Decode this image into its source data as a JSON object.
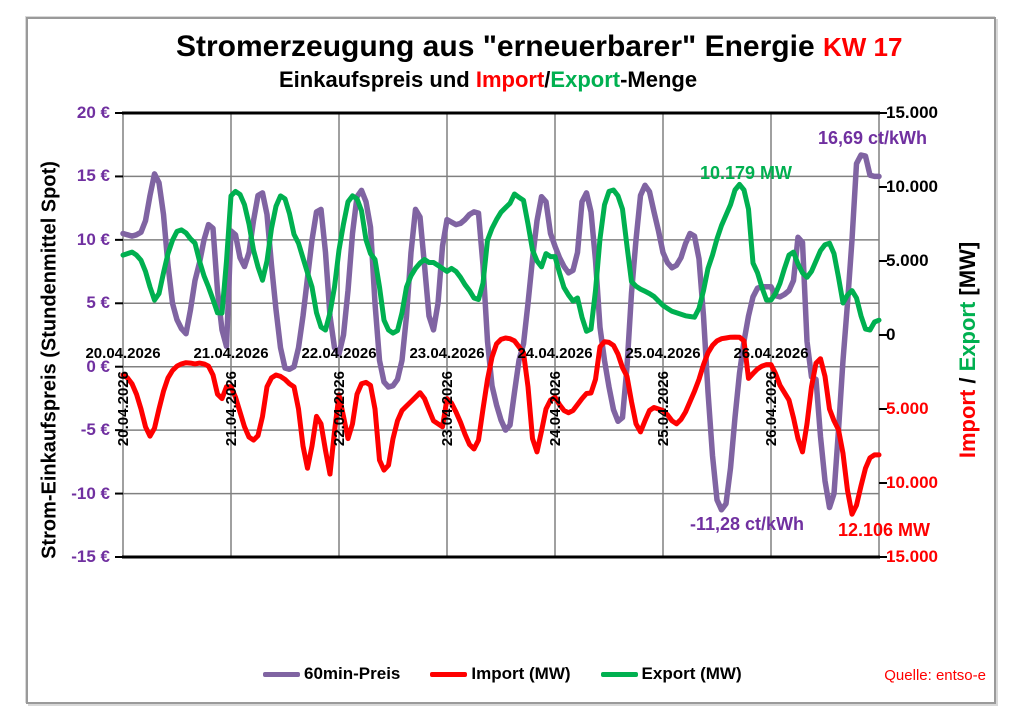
{
  "title": {
    "main": "Stromerzeugung aus \"erneuerbarer\" Energie",
    "week": "KW 17"
  },
  "subtitle": {
    "parts": [
      {
        "text": "Einkaufspreis und ",
        "color": "#000000"
      },
      {
        "text": "Import",
        "color": "#ff0000"
      },
      {
        "text": "/",
        "color": "#000000"
      },
      {
        "text": "Export",
        "color": "#00B050"
      },
      {
        "text": "-Menge",
        "color": "#000000"
      }
    ]
  },
  "colors": {
    "price_line": "#8064A2",
    "import_line": "#ff0000",
    "export_line": "#00B050",
    "axis_label_purple": "#7030A0",
    "gridline": "#808080",
    "axis_border": "#000000"
  },
  "axes": {
    "left": {
      "title": "Strom-Einkaufspreis (Stundenmittel Spot)",
      "labels": [
        "20 €",
        "15 €",
        "10 €",
        "5 €",
        "0 €",
        "-5 €",
        "-10 €",
        "-15 €"
      ],
      "color": "#7030A0"
    },
    "right": {
      "title_parts": [
        {
          "text": "Import",
          "color": "#ff0000"
        },
        {
          "text": " / ",
          "color": "#000000"
        },
        {
          "text": "Export",
          "color": "#00B050"
        },
        {
          "text": " [MW]",
          "color": "#000000"
        }
      ],
      "labels": [
        {
          "text": "15.000",
          "color": "#000000"
        },
        {
          "text": "10.000",
          "color": "#000000"
        },
        {
          "text": "5.000",
          "color": "#000000"
        },
        {
          "text": "0",
          "color": "#000000"
        },
        {
          "text": "5.000",
          "color": "#ff0000"
        },
        {
          "text": "10.000",
          "color": "#ff0000"
        },
        {
          "text": "15.000",
          "color": "#ff0000"
        }
      ]
    },
    "x": {
      "dates": [
        "20.04.2026",
        "21.04.2026",
        "22.04.2026",
        "23.04.2026",
        "24.04.2026",
        "25.04.2026",
        "26.04.2026"
      ]
    }
  },
  "annotations": {
    "price_max": "16,69 ct/kWh",
    "export_max": "10.179 MW",
    "price_min": "-11,28 ct/kWh",
    "import_max": "12.106 MW"
  },
  "legend": {
    "items": [
      {
        "label": "60min-Preis",
        "color": "#8064A2"
      },
      {
        "label": "Import (MW)",
        "color": "#ff0000"
      },
      {
        "label": "Export (MW)",
        "color": "#00B050"
      }
    ],
    "source": "Quelle: entso-e"
  },
  "chart_data": {
    "type": "line",
    "title": "Stromerzeugung aus \"erneuerbarer\" Energie KW 17",
    "subtitle": "Einkaufspreis und Import/Export-Menge",
    "x_unit": "hours since 20.04.2026 00:00",
    "x_range": [
      0,
      168
    ],
    "x_tick_labels": [
      "20.04.2026",
      "21.04.2026",
      "22.04.2026",
      "23.04.2026",
      "24.04.2026",
      "25.04.2026",
      "26.04.2026"
    ],
    "grid": true,
    "legend_position": "bottom",
    "left_axis": {
      "label": "Strom-Einkaufspreis (Stundenmittel Spot)",
      "unit": "€",
      "range": [
        -15,
        20
      ],
      "tick_step": 5
    },
    "right_axis": {
      "label": "Import / Export [MW]",
      "range": [
        -15000,
        15000
      ],
      "tick_step": 5000,
      "note": "import plotted downward as negative, labeled with red positive numbers"
    },
    "series": [
      {
        "name": "60min-Preis",
        "axis": "left",
        "color": "#8064A2",
        "values": [
          10.5,
          10.4,
          10.3,
          10.4,
          10.6,
          11.5,
          13.5,
          15.2,
          14.5,
          12.0,
          8.0,
          5.0,
          3.7,
          3.0,
          2.6,
          4.5,
          6.8,
          8.2,
          10.0,
          11.2,
          10.9,
          6.0,
          2.9,
          1.6,
          10.7,
          10.4,
          8.6,
          7.9,
          9.0,
          11.5,
          13.5,
          13.7,
          12.0,
          8.0,
          4.5,
          1.5,
          -0.1,
          -0.2,
          0.0,
          1.5,
          4.0,
          7.0,
          10.0,
          12.2,
          12.4,
          9.0,
          4.0,
          1.5,
          1.0,
          2.5,
          6.0,
          10.5,
          13.4,
          13.9,
          13.0,
          11.0,
          5.0,
          0.5,
          -1.2,
          -1.6,
          -1.5,
          -1.0,
          0.5,
          4.0,
          9.0,
          12.4,
          11.8,
          8.0,
          4.0,
          2.9,
          5.0,
          9.5,
          11.6,
          11.4,
          11.2,
          11.3,
          11.6,
          12.0,
          12.2,
          12.1,
          8.0,
          2.0,
          -1.5,
          -3.0,
          -4.2,
          -5.0,
          -4.6,
          -2.0,
          0.5,
          1.8,
          5.0,
          8.5,
          11.5,
          13.4,
          13.0,
          10.5,
          9.5,
          8.6,
          7.9,
          7.4,
          7.6,
          9.0,
          13.0,
          13.7,
          12.2,
          8.4,
          3.1,
          0.5,
          -1.6,
          -3.4,
          -4.3,
          -4.0,
          0.0,
          5.8,
          10.0,
          13.5,
          14.3,
          13.8,
          12.2,
          10.7,
          9.0,
          8.2,
          7.8,
          8.0,
          8.6,
          9.7,
          10.5,
          10.3,
          8.5,
          4.0,
          -2.0,
          -7.0,
          -10.5,
          -11.28,
          -10.8,
          -8.0,
          -4.0,
          -0.5,
          2.0,
          4.0,
          5.5,
          6.2,
          6.3,
          6.3,
          6.3,
          5.6,
          5.5,
          5.7,
          6.0,
          6.8,
          10.2,
          9.8,
          2.0,
          -0.8,
          -1.0,
          -5.5,
          -9.0,
          -11.1,
          -10.0,
          -5.0,
          0.5,
          5.0,
          10.0,
          16.0,
          16.69,
          16.6,
          15.1,
          15.0,
          15.0
        ],
        "min_label": "-11,28 ct/kWh",
        "max_label": "16,69 ct/kWh"
      },
      {
        "name": "Import (MW)",
        "axis": "right",
        "color": "#ff0000",
        "plotted_sign": -1,
        "values": [
          2700,
          2900,
          3300,
          4000,
          5000,
          6200,
          6830,
          6300,
          5000,
          3800,
          2900,
          2400,
          2100,
          1950,
          1870,
          1900,
          1950,
          1900,
          1950,
          2100,
          2700,
          4000,
          4300,
          3500,
          3500,
          4200,
          5200,
          6200,
          6900,
          7100,
          6800,
          5500,
          3500,
          2900,
          2700,
          2800,
          3000,
          3300,
          3500,
          5000,
          7500,
          9000,
          7500,
          5500,
          6000,
          7800,
          9400,
          6500,
          4050,
          5500,
          7000,
          6000,
          4000,
          3300,
          3200,
          3400,
          5000,
          8450,
          9130,
          8800,
          7000,
          5800,
          5100,
          4800,
          4500,
          4200,
          3900,
          4300,
          5070,
          5800,
          6000,
          6200,
          4300,
          4600,
          5200,
          5900,
          6700,
          7400,
          7700,
          7100,
          5000,
          3000,
          1500,
          600,
          300,
          200,
          250,
          400,
          800,
          1200,
          3500,
          7000,
          7900,
          6500,
          5000,
          4400,
          4200,
          4700,
          5100,
          5250,
          5100,
          4700,
          4300,
          3950,
          3920,
          3000,
          800,
          450,
          500,
          700,
          1300,
          2200,
          2800,
          4500,
          6000,
          6550,
          5800,
          5100,
          4900,
          5000,
          5100,
          5400,
          5800,
          6000,
          5700,
          5200,
          4500,
          3800,
          3000,
          2000,
          1200,
          700,
          400,
          250,
          200,
          150,
          140,
          150,
          400,
          2930,
          2600,
          2300,
          2100,
          2000,
          2000,
          2600,
          3400,
          3900,
          4400,
          5600,
          7000,
          7900,
          6000,
          3500,
          1900,
          1600,
          2800,
          5000,
          5800,
          6400,
          8000,
          10500,
          12106,
          11500,
          10200,
          9000,
          8300,
          8100,
          8100
        ],
        "max_label": "12.106 MW"
      },
      {
        "name": "Export (MW)",
        "axis": "right",
        "color": "#00B050",
        "plotted_sign": 1,
        "values": [
          5400,
          5500,
          5600,
          5400,
          5050,
          4300,
          3240,
          2360,
          2800,
          4200,
          5500,
          6400,
          7000,
          7100,
          6900,
          6500,
          6200,
          5000,
          4000,
          3240,
          2400,
          1500,
          1480,
          5000,
          9400,
          9700,
          9500,
          8800,
          7500,
          5740,
          4600,
          3700,
          5000,
          7200,
          8700,
          9400,
          9200,
          8200,
          6800,
          6200,
          5200,
          4200,
          3240,
          1500,
          540,
          340,
          1500,
          3240,
          5740,
          7500,
          9000,
          9400,
          9200,
          8400,
          6430,
          5500,
          5100,
          3240,
          1000,
          340,
          130,
          300,
          1500,
          3240,
          4000,
          4500,
          4860,
          5100,
          4900,
          4900,
          4700,
          4500,
          4300,
          4500,
          4300,
          3900,
          3400,
          3000,
          2500,
          2400,
          3500,
          6400,
          7200,
          7800,
          8300,
          8600,
          8900,
          9530,
          9300,
          9100,
          7500,
          5740,
          5000,
          4600,
          5500,
          5300,
          5300,
          4200,
          3200,
          2700,
          2300,
          2500,
          1200,
          250,
          400,
          3000,
          6500,
          8800,
          9700,
          9800,
          9400,
          8500,
          6000,
          3600,
          3300,
          3100,
          2950,
          2800,
          2600,
          2300,
          2000,
          1800,
          1600,
          1500,
          1400,
          1300,
          1250,
          1200,
          1800,
          3000,
          4500,
          5400,
          6500,
          7400,
          8100,
          8800,
          9800,
          10179,
          9800,
          8500,
          4860,
          4200,
          3200,
          2365,
          2365,
          2800,
          3500,
          4500,
          5400,
          5600,
          4800,
          4200,
          3900,
          4300,
          5000,
          5700,
          6100,
          6200,
          5500,
          3900,
          2160,
          2700,
          3000,
          2500,
          1300,
          400,
          340,
          880,
          1000
        ],
        "max_label": "10.179 MW"
      }
    ]
  }
}
